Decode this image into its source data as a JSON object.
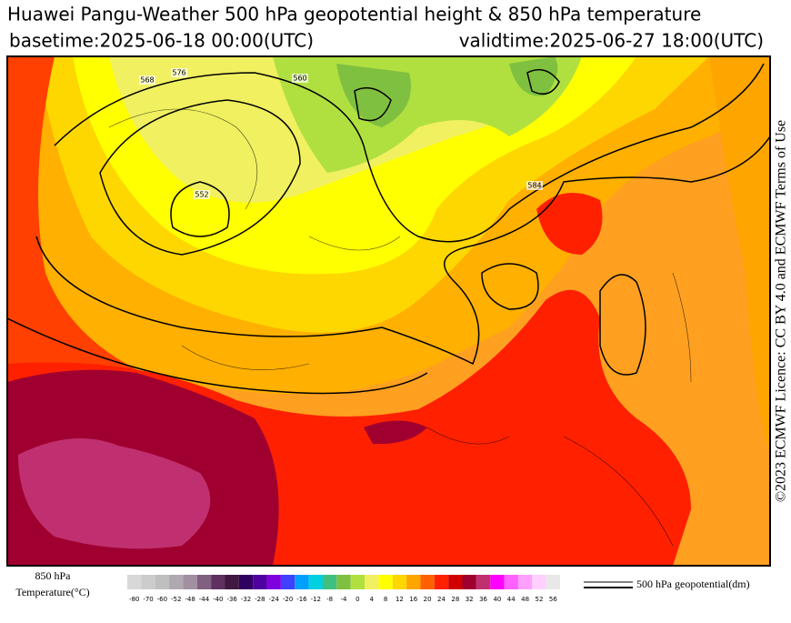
{
  "header": {
    "title": "Huawei Pangu-Weather 500 hPa geopotential height & 850 hPa temperature",
    "basetime": "basetime:2025-06-18 00:00(UTC)",
    "validtime": "validtime:2025-06-27 18:00(UTC)"
  },
  "credit": "©2023 ECMWF Licence: CC BY 4.0 and ECMWF Terms of Use",
  "legend": {
    "temperature_label": [
      "850 hPa",
      "Temperature(°C)"
    ],
    "colorbar": {
      "ticks": [
        -80,
        -70,
        -60,
        -52,
        -48,
        -44,
        -40,
        -36,
        -32,
        -28,
        -24,
        -20,
        -16,
        -12,
        -8,
        -4,
        0,
        4,
        8,
        12,
        16,
        20,
        24,
        28,
        32,
        36,
        40,
        44,
        48,
        52,
        56
      ],
      "colors": [
        "#d8d8d8",
        "#cccccc",
        "#bfbfbf",
        "#b0a8b0",
        "#a090a0",
        "#806080",
        "#603060",
        "#401840",
        "#300060",
        "#5000a0",
        "#8000e0",
        "#4040ff",
        "#00a0ff",
        "#00d0e0",
        "#40c080",
        "#80c040",
        "#b0e040",
        "#f0f060",
        "#ffff00",
        "#ffd700",
        "#ffa500",
        "#ff6000",
        "#ff2000",
        "#d00000",
        "#a00030",
        "#c03070",
        "#ff00ff",
        "#ff60ff",
        "#ffa0ff",
        "#ffd0ff",
        "#e8e8e8"
      ]
    },
    "contour_label": "500 hPa geopotential(dm)"
  },
  "contour_labels": [
    "552",
    "560",
    "568",
    "576",
    "584"
  ]
}
